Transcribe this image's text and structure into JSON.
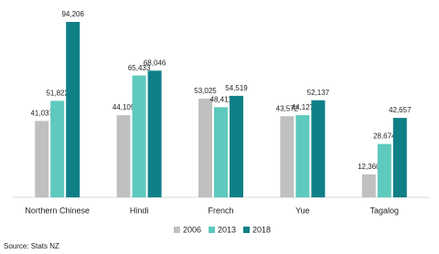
{
  "chart_data": {
    "type": "bar",
    "categories": [
      "Northern Chinese",
      "Hindi",
      "French",
      "Yue",
      "Tagalog"
    ],
    "series": [
      {
        "name": "2006",
        "color": "#c0c0c0",
        "values": [
          41037,
          44109,
          53025,
          43572,
          12360
        ],
        "value_labels": [
          "41,037",
          "44,109",
          "53,025",
          "43,572",
          "12,360"
        ]
      },
      {
        "name": "2013",
        "color": "#5ec9bd",
        "values": [
          51822,
          65433,
          48411,
          44127,
          28674
        ],
        "value_labels": [
          "51,822",
          "65,433",
          "48,411",
          "44,127",
          "28,674"
        ]
      },
      {
        "name": "2018",
        "color": "#0f8088",
        "values": [
          94206,
          68046,
          54519,
          52137,
          42657
        ],
        "value_labels": [
          "94,206",
          "68,046",
          "54,519",
          "52,137",
          "42,657"
        ]
      }
    ],
    "source": "Source: Stats NZ"
  }
}
